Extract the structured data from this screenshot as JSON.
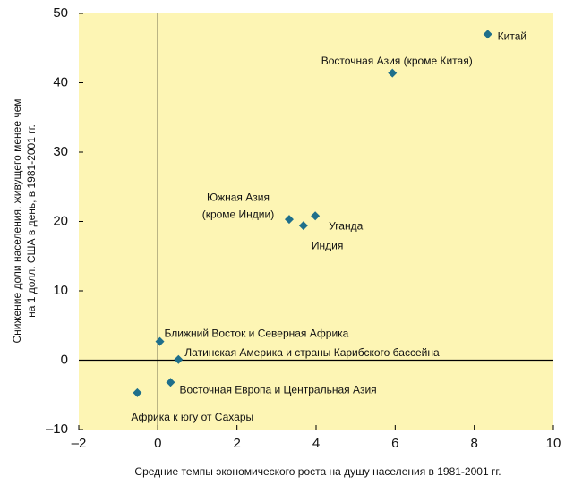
{
  "chart_data": {
    "type": "scatter",
    "xlabel": "Средние темпы экономического роста на душу населения в 1981-2001 гг.",
    "ylabel": [
      "Снижение доли населения, живущего менее чем",
      "на 1 долл. США в день, в 1981-2001 гг."
    ],
    "x": [
      8.34,
      5.93,
      3.32,
      3.68,
      3.98,
      0.05,
      0.52,
      0.32,
      -0.52
    ],
    "values": [
      47.0,
      41.4,
      20.3,
      19.4,
      20.8,
      2.7,
      0.1,
      -3.2,
      -4.7
    ],
    "labels": [
      "Китай",
      "Восточная Азия (кроме Китая)",
      [
        "Южная Азия",
        "(кроме Индии)"
      ],
      "Индия",
      "Уганда",
      "Ближний Восток и Северная Африка",
      "Латинская Америка и страны Карибского бассейна",
      "Восточная Европа и Центральная Азия",
      "Африка к югу от Сахары"
    ],
    "color": "#1f6f8b",
    "xlim": [
      -2,
      10
    ],
    "xticks": [
      {
        "value": -2,
        "label": "–2"
      },
      0,
      2,
      4,
      6,
      8,
      10
    ],
    "ylim": [
      -10,
      50
    ],
    "yticks": [
      {
        "value": -10,
        "label": "–10"
      },
      0,
      10,
      20,
      30,
      40,
      50
    ],
    "grid": false
  }
}
